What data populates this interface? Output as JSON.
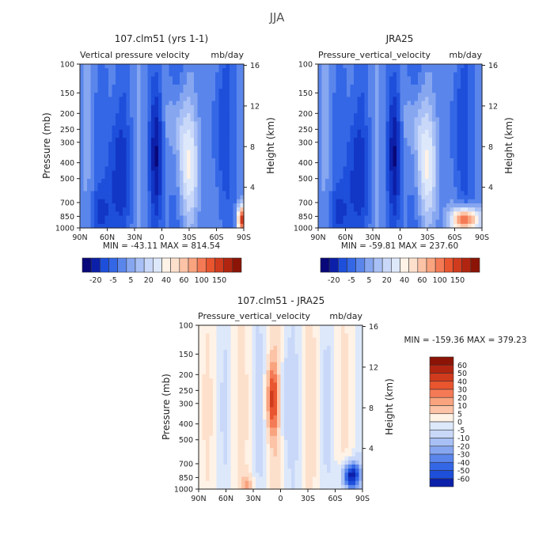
{
  "figure": {
    "title": "JJA"
  },
  "colors": {
    "neg": [
      "#08087a",
      "#0c1fa8",
      "#1236c6",
      "#1d4fdb",
      "#3467e6",
      "#5a86ec",
      "#86a6f0",
      "#a8c0f5",
      "#c9d8f8",
      "#dde8fb"
    ],
    "pos": [
      "#fff2e6",
      "#fde0cc",
      "#fcc3a6",
      "#f9a37f",
      "#f47a55",
      "#e8552f",
      "#d03a1d",
      "#b12510",
      "#8b1406"
    ]
  },
  "chart_data": [
    {
      "type": "heatmap",
      "title": "107.clm51 (yrs 1-1)",
      "subtitle_left": "Vertical pressure velocity",
      "subtitle_right": "mb/day",
      "xlabel": "",
      "ylabel": "Pressure (mb)",
      "ylabel_right": "Height (km)",
      "x_ticks": [
        "90N",
        "60N",
        "30N",
        "0",
        "30S",
        "60S",
        "90S"
      ],
      "y_ticks": [
        "100",
        "150",
        "200",
        "250",
        "300",
        "400",
        "500",
        "700",
        "850",
        "1000"
      ],
      "y_ticks_right": [
        "16",
        "12",
        "8",
        "4"
      ],
      "stats": "MIN = -43.11   MAX = 814.54",
      "colorbar": {
        "labels": [
          "-20",
          "-5",
          "5",
          "20",
          "40",
          "60",
          "100",
          "150"
        ],
        "swatches": [
          "#08087a",
          "#0c1fa8",
          "#1d4fdb",
          "#3467e6",
          "#5a86ec",
          "#86a6f0",
          "#a8c0f5",
          "#c9d8f8",
          "#dde8fb",
          "#fff2e6",
          "#fde0cc",
          "#fcc3a6",
          "#f9a37f",
          "#f47a55",
          "#e8552f",
          "#d03a1d",
          "#b12510",
          "#8b1406"
        ]
      }
    },
    {
      "type": "heatmap",
      "title": "JRA25",
      "subtitle_left": "Pressure_vertical_velocity",
      "subtitle_right": "mb/day",
      "xlabel": "",
      "ylabel": "",
      "ylabel_right": "Height (km)",
      "x_ticks": [
        "90N",
        "60N",
        "30N",
        "0",
        "30S",
        "60S",
        "90S"
      ],
      "y_ticks": [
        "100",
        "150",
        "200",
        "250",
        "300",
        "400",
        "500",
        "700",
        "850",
        "1000"
      ],
      "y_ticks_right": [
        "16",
        "12",
        "8",
        "4"
      ],
      "stats": "MIN = -59.81   MAX = 237.60",
      "colorbar": {
        "labels": [
          "-20",
          "-5",
          "5",
          "20",
          "40",
          "60",
          "100",
          "150"
        ],
        "swatches": [
          "#08087a",
          "#0c1fa8",
          "#1d4fdb",
          "#3467e6",
          "#5a86ec",
          "#86a6f0",
          "#a8c0f5",
          "#c9d8f8",
          "#dde8fb",
          "#fff2e6",
          "#fde0cc",
          "#fcc3a6",
          "#f9a37f",
          "#f47a55",
          "#e8552f",
          "#d03a1d",
          "#b12510",
          "#8b1406"
        ]
      }
    },
    {
      "type": "heatmap",
      "title": "107.clm51 - JRA25",
      "subtitle_left": "Pressure_vertical_velocity",
      "subtitle_right": "mb/day",
      "xlabel": "",
      "ylabel": "Pressure (mb)",
      "ylabel_right": "Height (km)",
      "x_ticks": [
        "90N",
        "60N",
        "30N",
        "0",
        "30S",
        "60S",
        "90S"
      ],
      "y_ticks": [
        "100",
        "150",
        "200",
        "250",
        "300",
        "400",
        "500",
        "700",
        "850",
        "1000"
      ],
      "y_ticks_right": [
        "16",
        "12",
        "8",
        "4"
      ],
      "stats": "MIN = -159.36   MAX = 379.23",
      "colorbar": {
        "labels": [
          "60",
          "50",
          "40",
          "30",
          "20",
          "10",
          "5",
          "0",
          "-5",
          "-10",
          "-20",
          "-30",
          "-40",
          "-50",
          "-60"
        ],
        "swatches": [
          "#8b1406",
          "#b12510",
          "#d03a1d",
          "#e8552f",
          "#f47a55",
          "#f9a37f",
          "#fcc3a6",
          "#fff2e6",
          "#dde8fb",
          "#c9d8f8",
          "#a8c0f5",
          "#86a6f0",
          "#5a86ec",
          "#3467e6",
          "#1d4fdb",
          "#0c1fa8"
        ]
      }
    }
  ]
}
